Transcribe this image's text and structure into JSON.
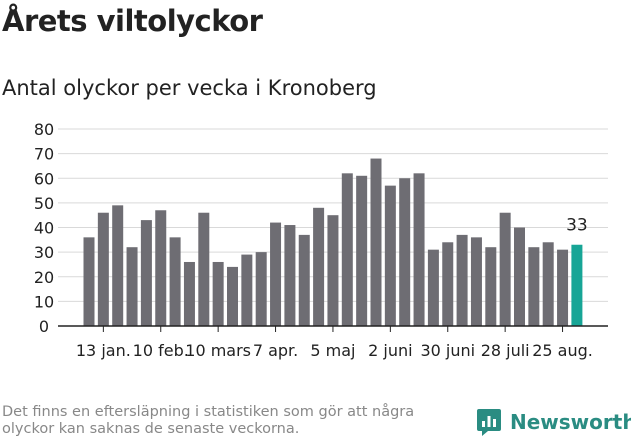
{
  "header": {
    "title": "Årets viltolyckor",
    "subtitle": "Antal olyckor per vecka i Kronoberg"
  },
  "footer": {
    "note": "Det finns en eftersläpning i statistiken som gör att några olyckor kan saknas de senaste veckorna.",
    "brand": "Newsworthy"
  },
  "colors": {
    "bar": "#6e6d73",
    "highlight": "#17a596",
    "grid": "#d9d9d9",
    "brand": "#2a8c82"
  },
  "chart_data": {
    "type": "bar",
    "title": "Antal olyckor per vecka i Kronoberg",
    "xlabel": "",
    "ylabel": "",
    "ylim": [
      0,
      80
    ],
    "yticks": [
      0,
      10,
      20,
      30,
      40,
      50,
      60,
      70,
      80
    ],
    "grid": true,
    "values": [
      36,
      46,
      49,
      32,
      43,
      47,
      36,
      26,
      46,
      26,
      24,
      29,
      30,
      42,
      41,
      37,
      48,
      45,
      62,
      61,
      68,
      57,
      60,
      62,
      31,
      34,
      37,
      36,
      32,
      46,
      40,
      32,
      34,
      31,
      33
    ],
    "highlight_index": 34,
    "highlight_label": "33",
    "xticks": [
      {
        "index": 1,
        "label": "13 jan."
      },
      {
        "index": 5,
        "label": "10 feb."
      },
      {
        "index": 9,
        "label": "10 mars"
      },
      {
        "index": 13,
        "label": "7 apr."
      },
      {
        "index": 17,
        "label": "5 maj"
      },
      {
        "index": 21,
        "label": "2 juni"
      },
      {
        "index": 25,
        "label": "30 juni"
      },
      {
        "index": 29,
        "label": "28 juli"
      },
      {
        "index": 33,
        "label": "25 aug."
      }
    ]
  }
}
